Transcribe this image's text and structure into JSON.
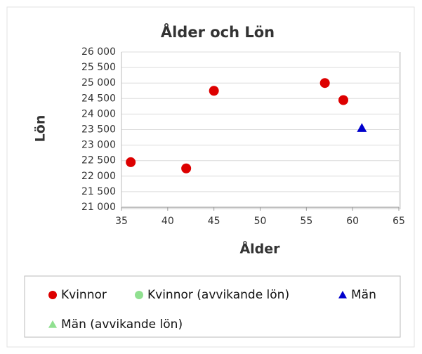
{
  "chart_data": {
    "type": "scatter",
    "title": "Ålder och Lön",
    "xlabel": "Ålder",
    "ylabel": "Lön",
    "xlim": [
      35,
      65
    ],
    "xticks": [
      35,
      40,
      45,
      50,
      55,
      60,
      65
    ],
    "ylim": [
      21000,
      26000
    ],
    "yticks": [
      {
        "value": 21000,
        "label": "21 000"
      },
      {
        "value": 21500,
        "label": "21 500"
      },
      {
        "value": 22000,
        "label": "22 000"
      },
      {
        "value": 22500,
        "label": "22 500"
      },
      {
        "value": 23000,
        "label": "23 000"
      },
      {
        "value": 23500,
        "label": "23 500"
      },
      {
        "value": 24000,
        "label": "24 000"
      },
      {
        "value": 24500,
        "label": "24 500"
      },
      {
        "value": 25000,
        "label": "25 000"
      },
      {
        "value": 25500,
        "label": "25 500"
      },
      {
        "value": 26000,
        "label": "26 000"
      }
    ],
    "grid": true,
    "series": [
      {
        "name": "Kvinnor",
        "color": "#dd0000",
        "marker": "circle",
        "x": [
          36,
          42,
          45,
          57,
          59
        ],
        "values": [
          22450,
          22250,
          24750,
          25000,
          24450
        ]
      },
      {
        "name": "Kvinnor (avvikande lön)",
        "color": "#90e090",
        "marker": "circle",
        "x": [],
        "values": []
      },
      {
        "name": "Män",
        "color": "#0000cc",
        "marker": "triangle",
        "x": [
          61
        ],
        "values": [
          23550
        ]
      },
      {
        "name": "Män (avvikande lön)",
        "color": "#90e090",
        "marker": "triangle",
        "x": [],
        "values": []
      }
    ]
  }
}
